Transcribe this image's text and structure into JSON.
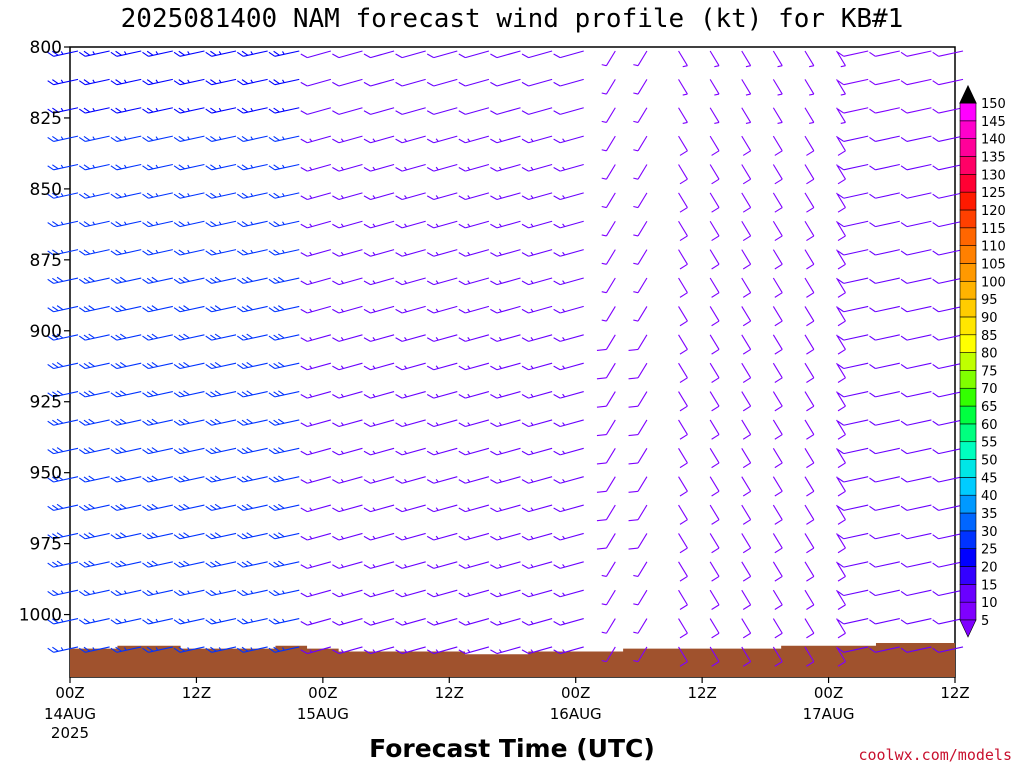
{
  "chart_data": {
    "type": "wind-barb-time-height",
    "title": "2025081400 NAM forecast wind profile (kt) for KB#1",
    "xlabel": "Forecast Time (UTC)",
    "ylabel": "",
    "y_axis": {
      "ticks": [
        800,
        825,
        850,
        875,
        900,
        925,
        950,
        975,
        1000
      ],
      "range": [
        800,
        1022
      ],
      "inverted": true,
      "units": "hPa"
    },
    "x_axis": {
      "range_hours": [
        0,
        84
      ],
      "ticks": [
        {
          "hour": 0,
          "time": "00Z",
          "date": "14AUG",
          "year": "2025"
        },
        {
          "hour": 12,
          "time": "12Z",
          "date": "",
          "year": ""
        },
        {
          "hour": 24,
          "time": "00Z",
          "date": "15AUG",
          "year": ""
        },
        {
          "hour": 36,
          "time": "12Z",
          "date": "",
          "year": ""
        },
        {
          "hour": 48,
          "time": "00Z",
          "date": "16AUG",
          "year": ""
        },
        {
          "hour": 60,
          "time": "12Z",
          "date": "",
          "year": ""
        },
        {
          "hour": 72,
          "time": "00Z",
          "date": "17AUG",
          "year": ""
        },
        {
          "hour": 84,
          "time": "12Z",
          "date": "",
          "year": ""
        }
      ]
    },
    "time_step_hours": 3,
    "level_step_hPa": 10,
    "surface_pressure_by_hour": [
      {
        "h": 0,
        "p": 1012
      },
      {
        "h": 3,
        "p": 1012
      },
      {
        "h": 6,
        "p": 1011
      },
      {
        "h": 9,
        "p": 1011
      },
      {
        "h": 12,
        "p": 1012
      },
      {
        "h": 15,
        "p": 1012
      },
      {
        "h": 18,
        "p": 1012
      },
      {
        "h": 21,
        "p": 1011
      },
      {
        "h": 24,
        "p": 1012
      },
      {
        "h": 27,
        "p": 1013
      },
      {
        "h": 30,
        "p": 1013
      },
      {
        "h": 33,
        "p": 1013
      },
      {
        "h": 36,
        "p": 1013
      },
      {
        "h": 39,
        "p": 1014
      },
      {
        "h": 42,
        "p": 1014
      },
      {
        "h": 45,
        "p": 1013
      },
      {
        "h": 48,
        "p": 1013
      },
      {
        "h": 51,
        "p": 1013
      },
      {
        "h": 54,
        "p": 1012
      },
      {
        "h": 57,
        "p": 1012
      },
      {
        "h": 60,
        "p": 1012
      },
      {
        "h": 63,
        "p": 1012
      },
      {
        "h": 66,
        "p": 1012
      },
      {
        "h": 69,
        "p": 1011
      },
      {
        "h": 72,
        "p": 1011
      },
      {
        "h": 75,
        "p": 1011
      },
      {
        "h": 78,
        "p": 1010
      },
      {
        "h": 81,
        "p": 1010
      },
      {
        "h": 84,
        "p": 1010
      }
    ],
    "wind_regimes": [
      {
        "hours": [
          0,
          24
        ],
        "direction_deg": 250,
        "speed_kt": [
          20,
          30
        ],
        "note": "strong west-southwesterly"
      },
      {
        "hours": [
          24,
          51
        ],
        "direction_deg": 245,
        "speed_kt": [
          10,
          15
        ]
      },
      {
        "hours": [
          51,
          57
        ],
        "direction_deg": 200,
        "speed_kt": [
          5,
          8
        ]
      },
      {
        "hours": [
          57,
          75
        ],
        "direction_deg": 160,
        "speed_kt": [
          5,
          10
        ]
      },
      {
        "hours": [
          75,
          84
        ],
        "direction_deg": 250,
        "speed_kt": [
          8,
          12
        ]
      }
    ],
    "colorbar": {
      "levels": [
        5,
        10,
        15,
        20,
        25,
        30,
        35,
        40,
        45,
        50,
        55,
        60,
        65,
        70,
        75,
        80,
        85,
        90,
        95,
        100,
        105,
        110,
        115,
        120,
        125,
        130,
        135,
        140,
        145,
        150
      ],
      "colors": [
        "#7f00ff",
        "#6a00ff",
        "#3300ff",
        "#0000ff",
        "#0033ff",
        "#0066ff",
        "#0099ff",
        "#00ccff",
        "#00e6e6",
        "#00ffbf",
        "#00ff7f",
        "#00ff40",
        "#33ff00",
        "#80ff00",
        "#bfff00",
        "#ffff00",
        "#ffe600",
        "#ffcc00",
        "#ffb300",
        "#ff9900",
        "#ff8000",
        "#ff6600",
        "#ff4000",
        "#ff1a00",
        "#ff0033",
        "#ff0066",
        "#ff0099",
        "#ff00cc",
        "#ff00ff",
        "#e600ff"
      ]
    },
    "ground_color": "#a0522d"
  },
  "credit": "coolwx.com/models"
}
